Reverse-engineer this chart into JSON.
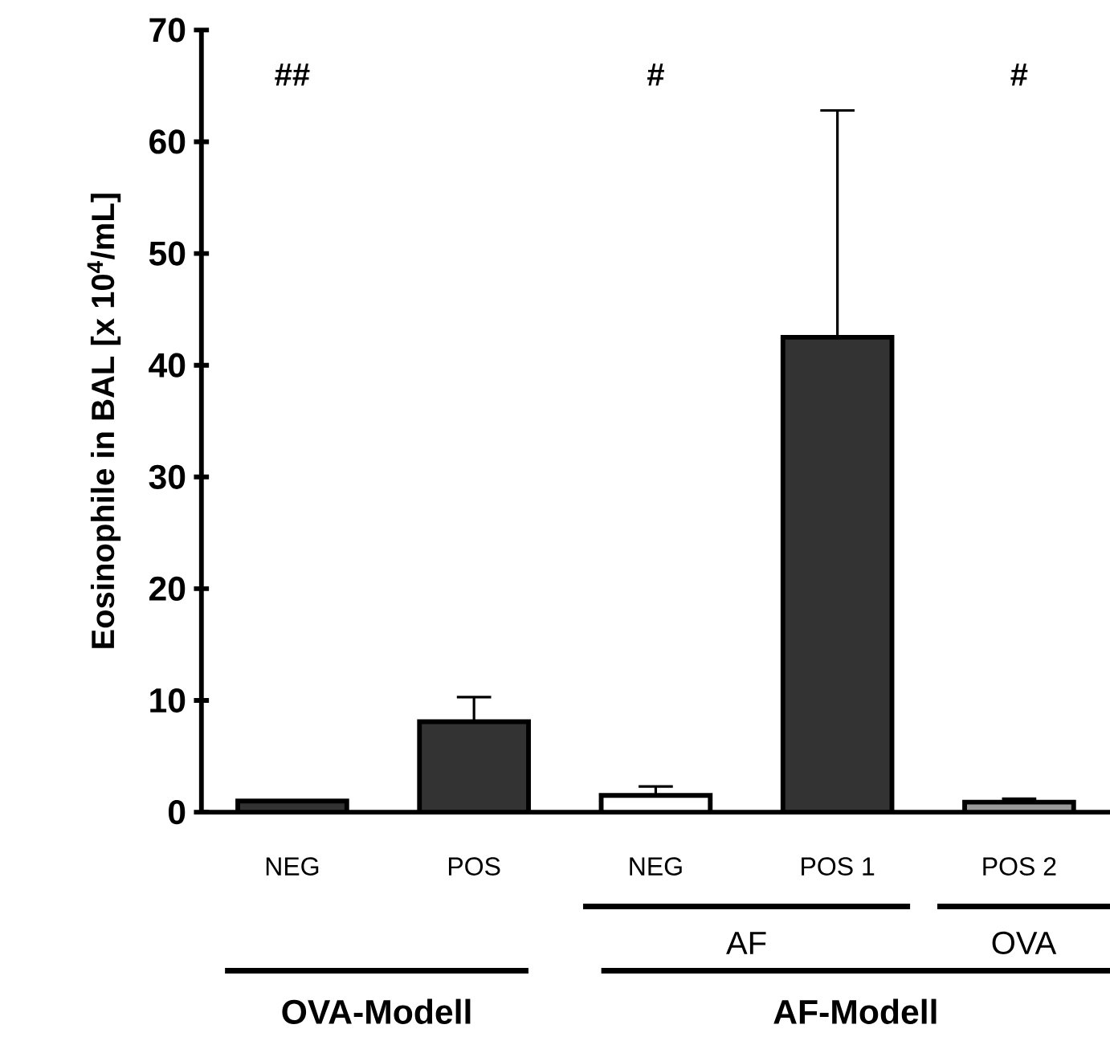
{
  "chart_data": {
    "type": "bar",
    "ylabel": "Eosinophile in BAL [x 10$^{4}$/mL]",
    "categories": [
      "NEG",
      "POS",
      "NEG",
      "POS 1",
      "POS 2"
    ],
    "values": [
      1.0,
      8.1,
      1.5,
      42.5,
      0.9
    ],
    "colors": [
      "#333333",
      "#333333",
      "#ffffff",
      "#333333",
      "#999999"
    ],
    "errors": [
      null,
      [
        8.1,
        10.3
      ],
      [
        1.5,
        2.3
      ],
      [
        42.5,
        62.8
      ],
      [
        0.9,
        1.2
      ]
    ],
    "ylim": [
      0,
      70
    ],
    "yticks": [
      0,
      10,
      20,
      30,
      40,
      50,
      60,
      70
    ],
    "annotations": [
      "##",
      "#",
      "#",
      "AF",
      "OVA",
      "OVA-Modell",
      "AF-Modell"
    ]
  }
}
